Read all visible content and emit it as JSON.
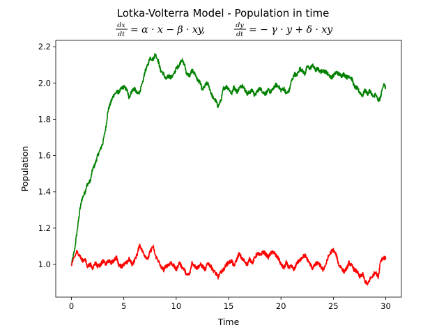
{
  "chart_data": {
    "type": "line",
    "title": "Lotka-Volterra Model - Population in time",
    "subtitle": {
      "eq1_num": "dx",
      "eq1_den": "dt",
      "eq1_rhs": "= α · x − β · xy,",
      "eq2_num": "dy",
      "eq2_den": "dt",
      "eq2_rhs": "= − γ · y + δ · xy"
    },
    "xlabel": "Time",
    "ylabel": "Population",
    "xlim": [
      -1.5,
      31.5
    ],
    "ylim": [
      0.82,
      2.235
    ],
    "xticks": [
      0,
      5,
      10,
      15,
      20,
      25,
      30
    ],
    "xtick_labels": [
      "0",
      "5",
      "10",
      "15",
      "20",
      "25",
      "30"
    ],
    "yticks": [
      1.0,
      1.2,
      1.4,
      1.6,
      1.8,
      2.0,
      2.2
    ],
    "ytick_labels": [
      "1.0",
      "1.2",
      "1.4",
      "1.6",
      "1.8",
      "2.0",
      "2.2"
    ],
    "grid": false,
    "series": [
      {
        "color": "#008000",
        "x": [
          0,
          0.3,
          0.6,
          0.8,
          1.0,
          1.3,
          1.5,
          1.8,
          2.0,
          2.3,
          2.5,
          2.8,
          3.0,
          3.3,
          3.5,
          3.8,
          4.0,
          4.3,
          4.5,
          4.8,
          5.0,
          5.3,
          5.5,
          5.8,
          6.0,
          6.3,
          6.5,
          6.8,
          7.0,
          7.3,
          7.5,
          7.8,
          8.0,
          8.3,
          8.5,
          8.8,
          9.0,
          9.3,
          9.5,
          9.8,
          10.0,
          10.3,
          10.5,
          10.8,
          11.0,
          11.3,
          11.5,
          11.8,
          12.0,
          12.3,
          12.5,
          12.8,
          13.0,
          13.3,
          13.5,
          13.8,
          14.0,
          14.3,
          14.5,
          14.8,
          15.0,
          15.3,
          15.5,
          15.8,
          16.0,
          16.3,
          16.5,
          16.8,
          17.0,
          17.3,
          17.5,
          17.8,
          18.0,
          18.3,
          18.5,
          18.8,
          19.0,
          19.3,
          19.5,
          19.8,
          20.0,
          20.3,
          20.5,
          20.8,
          21.0,
          21.3,
          21.5,
          21.8,
          22.0,
          22.3,
          22.5,
          22.8,
          23.0,
          23.3,
          23.5,
          23.8,
          24.0,
          24.3,
          24.5,
          24.8,
          25.0,
          25.3,
          25.5,
          25.8,
          26.0,
          26.3,
          26.5,
          26.8,
          27.0,
          27.3,
          27.5,
          27.8,
          28.0,
          28.3,
          28.5,
          28.8,
          29.0,
          29.3,
          29.5,
          29.8,
          30.0
        ],
        "values": [
          1.0,
          1.08,
          1.21,
          1.3,
          1.36,
          1.4,
          1.44,
          1.46,
          1.52,
          1.56,
          1.6,
          1.64,
          1.67,
          1.76,
          1.85,
          1.9,
          1.93,
          1.95,
          1.95,
          1.97,
          1.98,
          1.96,
          1.92,
          1.96,
          1.97,
          1.94,
          1.95,
          2.0,
          2.06,
          2.1,
          2.14,
          2.13,
          2.16,
          2.12,
          2.07,
          2.05,
          2.02,
          2.04,
          2.03,
          2.05,
          2.08,
          2.1,
          2.13,
          2.1,
          2.05,
          2.04,
          2.07,
          2.05,
          2.02,
          2.0,
          1.96,
          1.99,
          2.0,
          1.95,
          1.92,
          1.9,
          1.87,
          1.91,
          1.97,
          1.98,
          1.97,
          1.94,
          1.98,
          1.95,
          1.97,
          1.99,
          1.97,
          1.94,
          1.95,
          1.96,
          1.93,
          1.96,
          1.97,
          1.95,
          1.94,
          1.96,
          1.95,
          1.97,
          1.99,
          1.98,
          1.96,
          1.97,
          1.94,
          1.96,
          2.01,
          2.05,
          2.04,
          2.08,
          2.07,
          2.05,
          2.09,
          2.08,
          2.1,
          2.07,
          2.08,
          2.06,
          2.07,
          2.06,
          2.05,
          2.03,
          2.04,
          2.06,
          2.05,
          2.04,
          2.05,
          2.03,
          2.04,
          2.02,
          1.98,
          1.97,
          1.95,
          1.93,
          1.96,
          1.94,
          1.96,
          1.92,
          1.94,
          1.9,
          1.92,
          2.0,
          1.97
        ]
      },
      {
        "color": "#ff0000",
        "x": [
          0,
          0.3,
          0.5,
          0.8,
          1.0,
          1.3,
          1.5,
          1.8,
          2.0,
          2.3,
          2.5,
          2.8,
          3.0,
          3.3,
          3.5,
          3.8,
          4.0,
          4.3,
          4.5,
          4.8,
          5.0,
          5.3,
          5.5,
          5.8,
          6.0,
          6.3,
          6.5,
          6.8,
          7.0,
          7.3,
          7.5,
          7.8,
          8.0,
          8.3,
          8.5,
          8.8,
          9.0,
          9.3,
          9.5,
          9.8,
          10.0,
          10.3,
          10.5,
          10.8,
          11.0,
          11.3,
          11.5,
          11.8,
          12.0,
          12.3,
          12.5,
          12.8,
          13.0,
          13.3,
          13.5,
          13.8,
          14.0,
          14.3,
          14.5,
          14.8,
          15.0,
          15.3,
          15.5,
          15.8,
          16.0,
          16.3,
          16.5,
          16.8,
          17.0,
          17.3,
          17.5,
          17.8,
          18.0,
          18.3,
          18.5,
          18.8,
          19.0,
          19.3,
          19.5,
          19.8,
          20.0,
          20.3,
          20.5,
          20.8,
          21.0,
          21.3,
          21.5,
          21.8,
          22.0,
          22.3,
          22.5,
          22.8,
          23.0,
          23.3,
          23.5,
          23.8,
          24.0,
          24.3,
          24.5,
          24.8,
          25.0,
          25.3,
          25.5,
          25.8,
          26.0,
          26.3,
          26.5,
          26.8,
          27.0,
          27.3,
          27.5,
          27.8,
          28.0,
          28.3,
          28.5,
          28.8,
          29.0,
          29.3,
          29.5,
          29.8,
          30.0
        ],
        "values": [
          1.0,
          1.04,
          1.07,
          1.05,
          1.02,
          1.03,
          0.99,
          1.0,
          0.98,
          1.01,
          0.99,
          1.0,
          1.02,
          1.0,
          1.02,
          1.01,
          1.02,
          1.04,
          1.0,
          0.99,
          1.0,
          1.01,
          1.03,
          1.0,
          1.02,
          1.06,
          1.11,
          1.07,
          1.05,
          1.03,
          1.07,
          1.1,
          1.05,
          1.02,
          0.99,
          0.97,
          0.99,
          1.0,
          1.01,
          0.99,
          0.97,
          1.01,
          0.99,
          0.97,
          0.94,
          0.95,
          1.01,
          0.99,
          0.98,
          1.0,
          0.99,
          0.97,
          1.01,
          0.99,
          0.97,
          0.95,
          0.93,
          0.96,
          0.97,
          1.0,
          1.01,
          1.02,
          0.99,
          1.03,
          1.06,
          1.03,
          1.02,
          1.0,
          1.03,
          1.01,
          1.04,
          1.06,
          1.05,
          1.07,
          1.06,
          1.04,
          1.06,
          1.07,
          1.05,
          1.03,
          1.0,
          0.98,
          1.01,
          0.98,
          0.99,
          0.97,
          1.01,
          1.02,
          1.04,
          1.05,
          1.03,
          1.0,
          0.98,
          1.0,
          1.01,
          0.99,
          0.97,
          1.0,
          1.04,
          1.07,
          1.08,
          1.05,
          1.0,
          0.98,
          0.96,
          0.98,
          1.01,
          0.99,
          0.97,
          0.96,
          0.93,
          0.95,
          0.91,
          0.89,
          0.92,
          0.94,
          0.96,
          0.93,
          1.02,
          1.04,
          1.03
        ]
      }
    ]
  }
}
